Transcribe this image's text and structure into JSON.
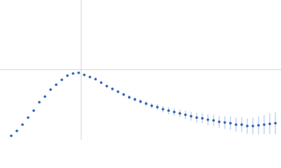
{
  "chart_data": {
    "type": "scatter",
    "x": [
      0.24,
      0.36,
      0.48,
      0.6,
      0.72,
      0.84,
      0.96,
      1.08,
      1.2,
      1.32,
      1.44,
      1.56,
      1.68,
      1.8,
      1.92,
      2.04,
      2.16,
      2.28,
      2.4,
      2.52,
      2.64,
      2.76,
      2.88,
      3.0,
      3.12,
      3.24,
      3.36,
      3.48,
      3.6,
      3.72,
      3.84,
      3.96,
      4.08,
      4.2,
      4.32,
      4.44,
      4.56,
      4.68,
      4.8,
      4.92,
      5.04,
      5.16,
      5.28,
      5.4,
      5.52,
      5.64,
      5.76,
      5.88
    ],
    "series": [
      {
        "color": "#2d5fb5",
        "error_color": "#b3c7e8",
        "values": [
          0.066,
          0.143,
          0.242,
          0.352,
          0.462,
          0.594,
          0.682,
          0.792,
          0.869,
          0.946,
          1.012,
          1.045,
          1.056,
          1.023,
          0.99,
          0.957,
          0.902,
          0.847,
          0.803,
          0.759,
          0.715,
          0.671,
          0.638,
          0.605,
          0.572,
          0.539,
          0.517,
          0.484,
          0.462,
          0.44,
          0.418,
          0.396,
          0.374,
          0.352,
          0.341,
          0.319,
          0.308,
          0.286,
          0.275,
          0.264,
          0.242,
          0.242,
          0.22,
          0.22,
          0.231,
          0.242,
          0.253,
          0.264
        ],
        "errors": [
          0.004,
          0.005,
          0.005,
          0.006,
          0.006,
          0.007,
          0.007,
          0.008,
          0.008,
          0.009,
          0.01,
          0.01,
          0.011,
          0.012,
          0.014,
          0.016,
          0.018,
          0.02,
          0.022,
          0.025,
          0.028,
          0.03,
          0.033,
          0.036,
          0.04,
          0.043,
          0.046,
          0.05,
          0.054,
          0.058,
          0.062,
          0.066,
          0.07,
          0.075,
          0.08,
          0.085,
          0.09,
          0.095,
          0.1,
          0.105,
          0.11,
          0.115,
          0.12,
          0.13,
          0.14,
          0.15,
          0.16,
          0.17
        ]
      }
    ],
    "xlim": [
      0,
      6
    ],
    "ylim": [
      0,
      2.2
    ],
    "xticks": [
      1.732
    ],
    "yticks": [
      1.104
    ],
    "grid": true
  }
}
